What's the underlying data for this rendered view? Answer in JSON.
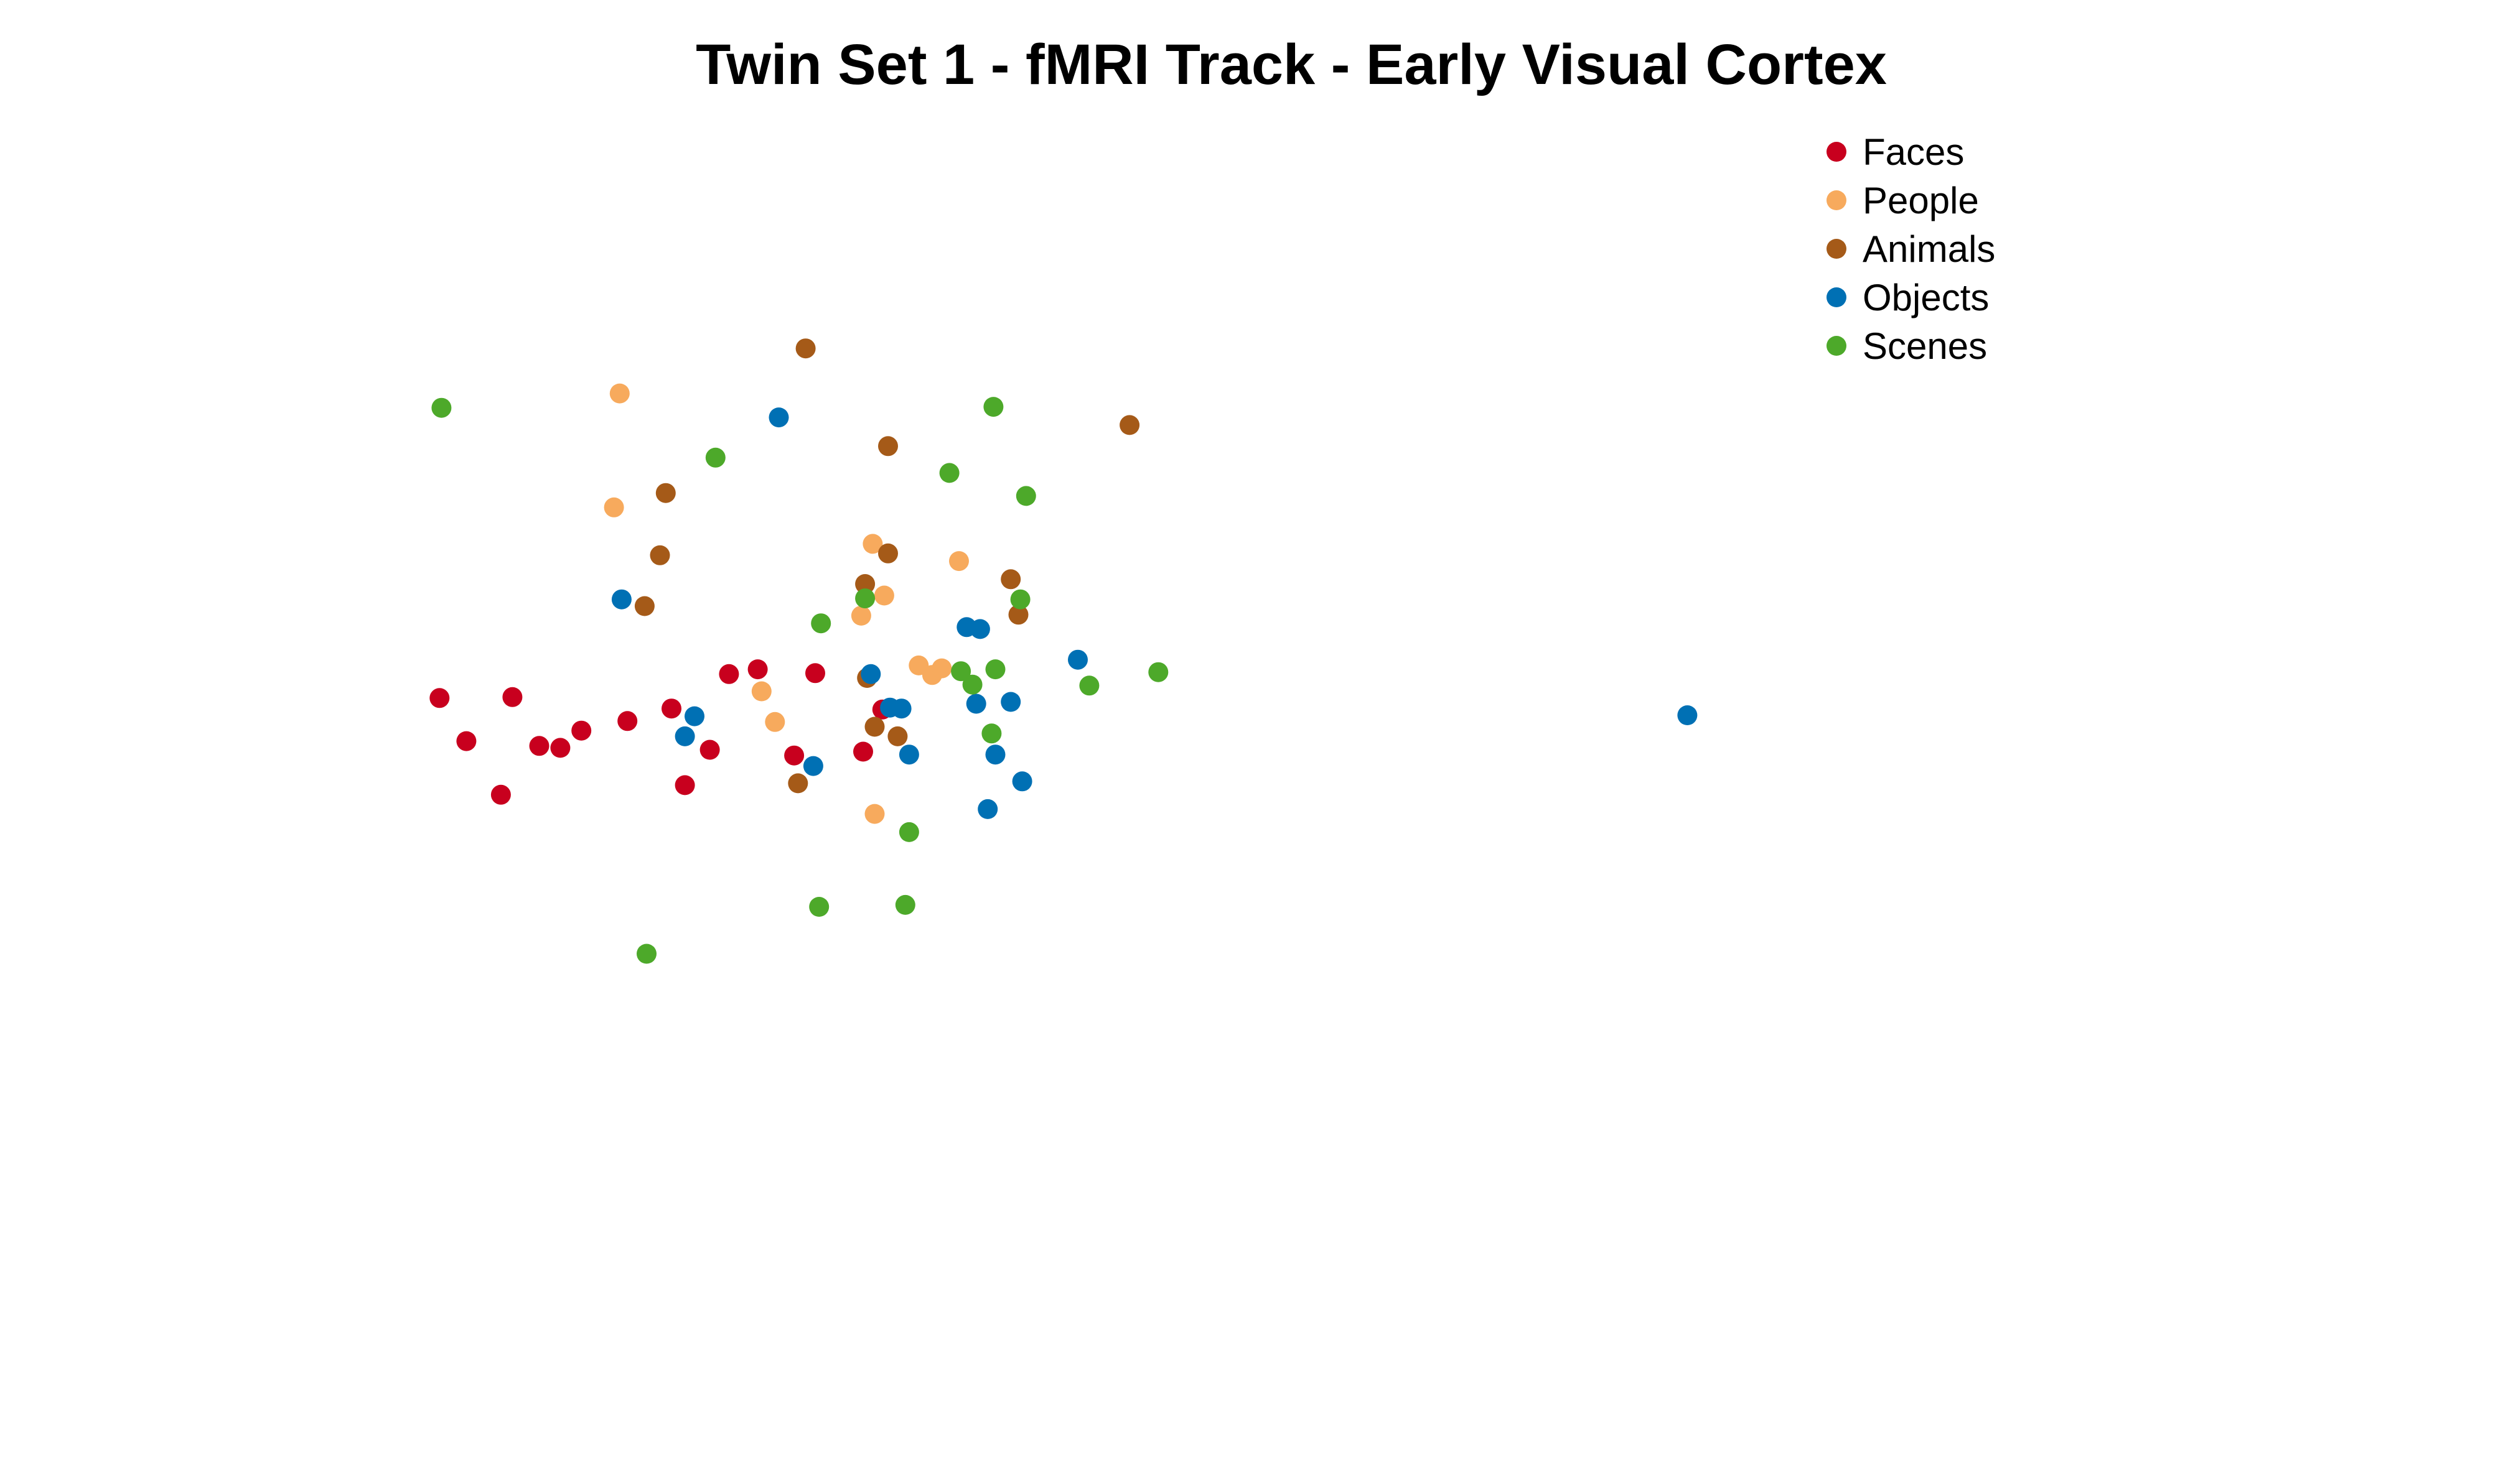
{
  "chart_data": {
    "type": "scatter",
    "title": "Twin Set 1 - fMRI Track - Early Visual Cortex",
    "xlabel": "",
    "ylabel": "",
    "grid": false,
    "axes_visible": false,
    "legend_position": "top-right",
    "xlim": [
      0,
      100
    ],
    "ylim": [
      0,
      100
    ],
    "series": [
      {
        "name": "Faces",
        "color": "#c8001e",
        "points": [
          [
            5.4,
            50.5
          ],
          [
            9.2,
            50.6
          ],
          [
            6.8,
            46.0
          ],
          [
            10.6,
            45.5
          ],
          [
            12.8,
            47.1
          ],
          [
            11.7,
            45.3
          ],
          [
            15.2,
            48.1
          ],
          [
            17.5,
            49.4
          ],
          [
            8.6,
            40.4
          ],
          [
            18.2,
            41.4
          ],
          [
            20.5,
            53.0
          ],
          [
            22.0,
            53.5
          ],
          [
            25.0,
            53.1
          ],
          [
            19.5,
            45.1
          ],
          [
            23.9,
            44.5
          ],
          [
            28.5,
            49.3
          ],
          [
            27.5,
            44.9
          ]
        ]
      },
      {
        "name": "People",
        "color": "#f7aa5d",
        "points": [
          [
            14.8,
            82.3
          ],
          [
            14.5,
            70.4
          ],
          [
            28.0,
            66.6
          ],
          [
            27.4,
            59.1
          ],
          [
            28.6,
            61.2
          ],
          [
            32.5,
            64.8
          ],
          [
            22.2,
            51.2
          ],
          [
            22.9,
            48.0
          ],
          [
            30.4,
            53.9
          ],
          [
            31.1,
            52.9
          ],
          [
            31.6,
            53.6
          ],
          [
            28.1,
            38.4
          ]
        ]
      },
      {
        "name": "Animals",
        "color": "#a55a18",
        "points": [
          [
            24.5,
            87.0
          ],
          [
            28.8,
            76.8
          ],
          [
            41.4,
            79.0
          ],
          [
            17.2,
            71.9
          ],
          [
            16.9,
            65.4
          ],
          [
            28.8,
            65.6
          ],
          [
            27.6,
            62.4
          ],
          [
            35.2,
            62.9
          ],
          [
            16.1,
            60.1
          ],
          [
            35.6,
            59.2
          ],
          [
            27.7,
            52.6
          ],
          [
            28.1,
            47.5
          ],
          [
            29.3,
            46.5
          ],
          [
            24.1,
            41.6
          ]
        ]
      },
      {
        "name": "Objects",
        "color": "#0070b4",
        "points": [
          [
            23.1,
            79.8
          ],
          [
            14.9,
            60.8
          ],
          [
            32.9,
            57.9
          ],
          [
            33.6,
            57.7
          ],
          [
            38.7,
            54.5
          ],
          [
            27.9,
            53.0
          ],
          [
            28.9,
            49.5
          ],
          [
            29.5,
            49.4
          ],
          [
            33.4,
            49.9
          ],
          [
            35.2,
            50.1
          ],
          [
            18.7,
            48.6
          ],
          [
            18.2,
            46.5
          ],
          [
            29.9,
            44.6
          ],
          [
            34.4,
            44.6
          ],
          [
            24.9,
            43.4
          ],
          [
            35.8,
            41.8
          ],
          [
            34.0,
            38.9
          ],
          [
            70.5,
            48.7
          ]
        ]
      },
      {
        "name": "Scenes",
        "color": "#4da92a",
        "points": [
          [
            5.5,
            80.8
          ],
          [
            19.8,
            75.6
          ],
          [
            34.3,
            80.9
          ],
          [
            32.0,
            74.0
          ],
          [
            36.0,
            71.6
          ],
          [
            27.6,
            60.9
          ],
          [
            35.7,
            60.8
          ],
          [
            25.3,
            58.3
          ],
          [
            32.6,
            53.3
          ],
          [
            33.2,
            51.9
          ],
          [
            34.4,
            53.5
          ],
          [
            39.3,
            51.8
          ],
          [
            42.9,
            53.2
          ],
          [
            34.2,
            46.8
          ],
          [
            29.9,
            36.5
          ],
          [
            25.2,
            28.7
          ],
          [
            29.7,
            28.9
          ],
          [
            16.2,
            23.8
          ]
        ]
      }
    ]
  }
}
